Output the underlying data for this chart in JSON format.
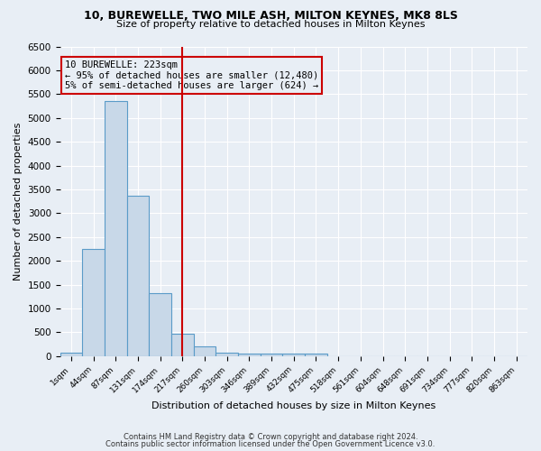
{
  "title1": "10, BUREWELLE, TWO MILE ASH, MILTON KEYNES, MK8 8LS",
  "title2": "Size of property relative to detached houses in Milton Keynes",
  "xlabel": "Distribution of detached houses by size in Milton Keynes",
  "ylabel": "Number of detached properties",
  "bar_color": "#c8d8e8",
  "bar_edge_color": "#5a9bc8",
  "bin_labels": [
    "1sqm",
    "44sqm",
    "87sqm",
    "131sqm",
    "174sqm",
    "217sqm",
    "260sqm",
    "303sqm",
    "346sqm",
    "389sqm",
    "432sqm",
    "475sqm",
    "518sqm",
    "561sqm",
    "604sqm",
    "648sqm",
    "691sqm",
    "734sqm",
    "777sqm",
    "820sqm",
    "863sqm"
  ],
  "bar_heights": [
    75,
    2250,
    5350,
    3375,
    1325,
    475,
    200,
    75,
    50,
    50,
    50,
    50,
    0,
    0,
    0,
    0,
    0,
    0,
    0,
    0,
    0
  ],
  "vline_position": 5.0,
  "vline_color": "#cc0000",
  "annotation_line1": "10 BUREWELLE: 223sqm",
  "annotation_line2": "← 95% of detached houses are smaller (12,480)",
  "annotation_line3": "5% of semi-detached houses are larger (624) →",
  "ylim": [
    0,
    6500
  ],
  "yticks": [
    0,
    500,
    1000,
    1500,
    2000,
    2500,
    3000,
    3500,
    4000,
    4500,
    5000,
    5500,
    6000,
    6500
  ],
  "footer1": "Contains HM Land Registry data © Crown copyright and database right 2024.",
  "footer2": "Contains public sector information licensed under the Open Government Licence v3.0.",
  "bg_color": "#e8eef5",
  "grid_color": "#ffffff"
}
